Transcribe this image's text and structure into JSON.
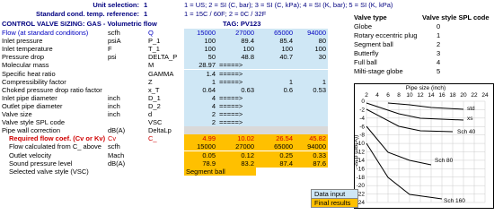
{
  "settings": [
    {
      "label": "Unit selection:",
      "value": "1",
      "note": "1 = US; 2 = SI (C, bar); 3 = SI (C, kPa); 4 = SI (K, bar); 5 = SI (K, kPa)"
    },
    {
      "label": "Standard cond. temp. reference:",
      "value": "1",
      "note": "1 = 15C / 60F; 2 = 0C / 32F"
    }
  ],
  "sheet": {
    "title": "CONTROL VALVE SIZING: GAS - Volumetric flow",
    "tag": "TAG: PV123",
    "rows": [
      {
        "label": "Flow  (at standard conditions)",
        "unit": "scfh",
        "symbol": "Q",
        "values": [
          "15000",
          "27000",
          "65000",
          "94000"
        ]
      },
      {
        "label": "Inlet pressure",
        "unit": "psiA",
        "symbol": "P_1",
        "values": [
          "100",
          "89.4",
          "85.4",
          "80"
        ]
      },
      {
        "label": "Inlet temperature",
        "unit": "F",
        "symbol": "T_1",
        "values": [
          "100",
          "100",
          "100",
          "100"
        ]
      },
      {
        "label": "Pressure drop",
        "unit": "psi",
        "symbol": "DELTA_P",
        "values": [
          "50",
          "48.8",
          "40.7",
          "30"
        ]
      },
      {
        "label": "Molecular mass",
        "symbol": "M",
        "values": [
          "28.97",
          "=====>"
        ]
      },
      {
        "label": "Specific heat ratio",
        "symbol": "GAMMA",
        "values": [
          "1.4",
          "=====>"
        ]
      },
      {
        "label": "Compressibility factor",
        "symbol": "Z",
        "values": [
          "1",
          "=====>",
          "1",
          "1"
        ]
      },
      {
        "label": "Choked pressure drop ratio factor",
        "symbol": "x_T",
        "values": [
          "0.64",
          "0.63",
          "0.6",
          "0.53"
        ]
      },
      {
        "label": "Inlet pipe diameter",
        "unit": "inch",
        "symbol": "D_1",
        "values": [
          "4",
          "=====>"
        ]
      },
      {
        "label": "Outlet pipe diameter",
        "unit": "inch",
        "symbol": "D_2",
        "values": [
          "4",
          "=====>"
        ]
      },
      {
        "label": "Valve size",
        "unit": "inch",
        "symbol": "d",
        "values": [
          "2",
          "=====>"
        ]
      },
      {
        "label": "Valve style SPL code",
        "symbol": "VSC",
        "values": [
          "2",
          "=====>"
        ]
      },
      {
        "label": "Pipe wall correction",
        "unit": "dB(A)",
        "symbol": "DeltaLp"
      },
      {
        "label": "Required flow coef. (Cv or Kv)",
        "unit": "Cv",
        "symbol": "C_",
        "values": [
          "4.99",
          "10.02",
          "26.54",
          "45.82"
        ]
      },
      {
        "label": "Flow calculated from C_ above",
        "unit": "scfh",
        "values": [
          "15000",
          "27000",
          "65000",
          "94000"
        ]
      },
      {
        "label": "Outlet velocity",
        "unit": "Mach",
        "values": [
          "0.05",
          "0.12",
          "0.25",
          "0.33"
        ]
      },
      {
        "label": "Sound pressure level",
        "unit": "dB(A)",
        "values": [
          "78.9",
          "83.2",
          "87.4",
          "87.6"
        ]
      },
      {
        "label": "Selected valve style (VSC)",
        "values": [
          "Segment ball"
        ]
      }
    ],
    "legend": [
      "Data input",
      "Final results"
    ]
  },
  "valve_table": {
    "headers": [
      "Valve type",
      "Valve style SPL code"
    ],
    "rows": [
      [
        "Globe",
        "0"
      ],
      [
        "Rotary eccentric plug",
        "1"
      ],
      [
        "Segment ball",
        "2"
      ],
      [
        "Butterfly",
        "3"
      ],
      [
        "Full ball",
        "4"
      ],
      [
        "Milti-stage globe",
        "5"
      ]
    ]
  },
  "pipe_chart": {
    "title": "Pipe size (inch)",
    "y_label": "-ΔLp (dB(A))",
    "xticks": [
      2,
      4,
      6,
      8,
      10,
      12,
      14,
      16,
      18,
      20,
      22,
      24
    ],
    "yticks": [
      0,
      -2,
      -4,
      -6,
      -8,
      -10,
      -12,
      -14,
      -16,
      -18,
      -20,
      -22,
      -24
    ],
    "curves": [
      "std",
      "xs",
      "Sch 40",
      "Sch 80",
      "Sch 160"
    ]
  }
}
